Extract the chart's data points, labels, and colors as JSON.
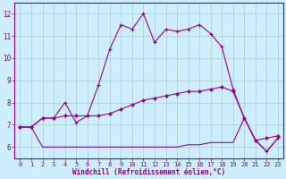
{
  "xlabel": "Windchill (Refroidissement éolien,°C)",
  "background_color": "#cceeff",
  "grid_color": "#aacccc",
  "line_color": "#990099",
  "xlim": [
    -0.5,
    23.5
  ],
  "ylim": [
    5.5,
    12.5
  ],
  "yticks": [
    6,
    7,
    8,
    9,
    10,
    11,
    12
  ],
  "xticks": [
    0,
    1,
    2,
    3,
    4,
    5,
    6,
    7,
    8,
    9,
    10,
    11,
    12,
    13,
    14,
    15,
    16,
    17,
    18,
    19,
    20,
    21,
    22,
    23
  ],
  "line1_x": [
    0,
    1,
    2,
    3,
    4,
    5,
    6,
    7,
    8,
    9,
    10,
    11,
    12,
    13,
    14,
    15,
    16,
    17,
    18,
    19,
    20,
    21,
    22,
    23
  ],
  "line1_y": [
    6.9,
    6.9,
    7.3,
    7.3,
    7.4,
    7.4,
    7.4,
    7.4,
    7.5,
    7.7,
    7.9,
    8.1,
    8.2,
    8.3,
    8.4,
    8.5,
    8.5,
    8.6,
    8.7,
    8.5,
    7.3,
    6.3,
    6.4,
    6.5
  ],
  "line2_x": [
    0,
    1,
    2,
    3,
    4,
    5,
    6,
    7,
    8,
    9,
    10,
    11,
    12,
    13,
    14,
    15,
    16,
    17,
    18,
    19,
    20,
    21,
    22,
    23
  ],
  "line2_y": [
    6.9,
    6.9,
    7.3,
    7.3,
    8.0,
    7.1,
    7.4,
    8.8,
    10.4,
    11.5,
    11.3,
    12.0,
    10.7,
    11.3,
    11.2,
    11.3,
    11.5,
    11.1,
    10.5,
    8.6,
    7.3,
    6.3,
    5.8,
    6.4
  ],
  "line3_x": [
    0,
    1,
    2,
    3,
    4,
    5,
    6,
    7,
    8,
    9,
    10,
    11,
    12,
    13,
    14,
    15,
    16,
    17,
    18,
    19,
    20,
    21,
    22,
    23
  ],
  "line3_y": [
    6.9,
    6.9,
    6.0,
    6.0,
    6.0,
    6.0,
    6.0,
    6.0,
    6.0,
    6.0,
    6.0,
    6.0,
    6.0,
    6.0,
    6.0,
    6.1,
    6.1,
    6.2,
    6.2,
    6.2,
    7.3,
    6.3,
    5.8,
    6.4
  ]
}
